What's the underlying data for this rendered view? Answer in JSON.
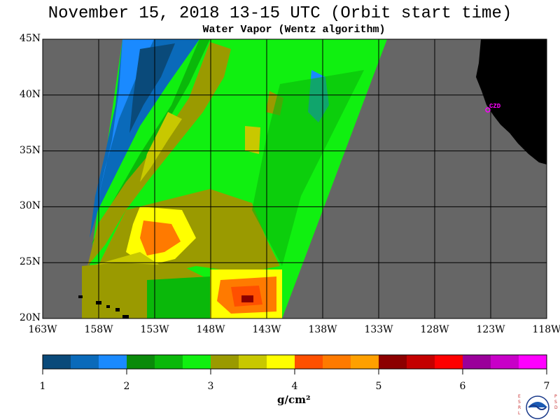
{
  "title": "November 15, 2018  13-15 UTC  (Orbit start time)",
  "subtitle": "Water Vapor (Wentz algorithm)",
  "lat_labels": [
    "45N",
    "40N",
    "35N",
    "30N",
    "25N",
    "20N"
  ],
  "lon_labels": [
    "163W",
    "158W",
    "153W",
    "148W",
    "143W",
    "138W",
    "133W",
    "128W",
    "123W",
    "118W"
  ],
  "colorbar": {
    "ticks": [
      "1",
      "2",
      "3",
      "4",
      "5",
      "6",
      "7"
    ],
    "colors": [
      "#0a4a7a",
      "#0a6aba",
      "#1a8aff",
      "#0a8a0a",
      "#0ab80a",
      "#10f010",
      "#9a9a00",
      "#c8c800",
      "#ffff00",
      "#ff5000",
      "#ff7a00",
      "#ffa000",
      "#8c0000",
      "#c40000",
      "#ff0000",
      "#9a009a",
      "#c800c8",
      "#ff00ff"
    ],
    "unit": "g/cm²"
  },
  "city_label": "CZD",
  "logo": {
    "left_letters": "ESRL",
    "right_letters": "PSD",
    "center": "NOAA"
  },
  "colors": {
    "land": "#000000",
    "no_data": "#666666",
    "grid": "#000000"
  }
}
